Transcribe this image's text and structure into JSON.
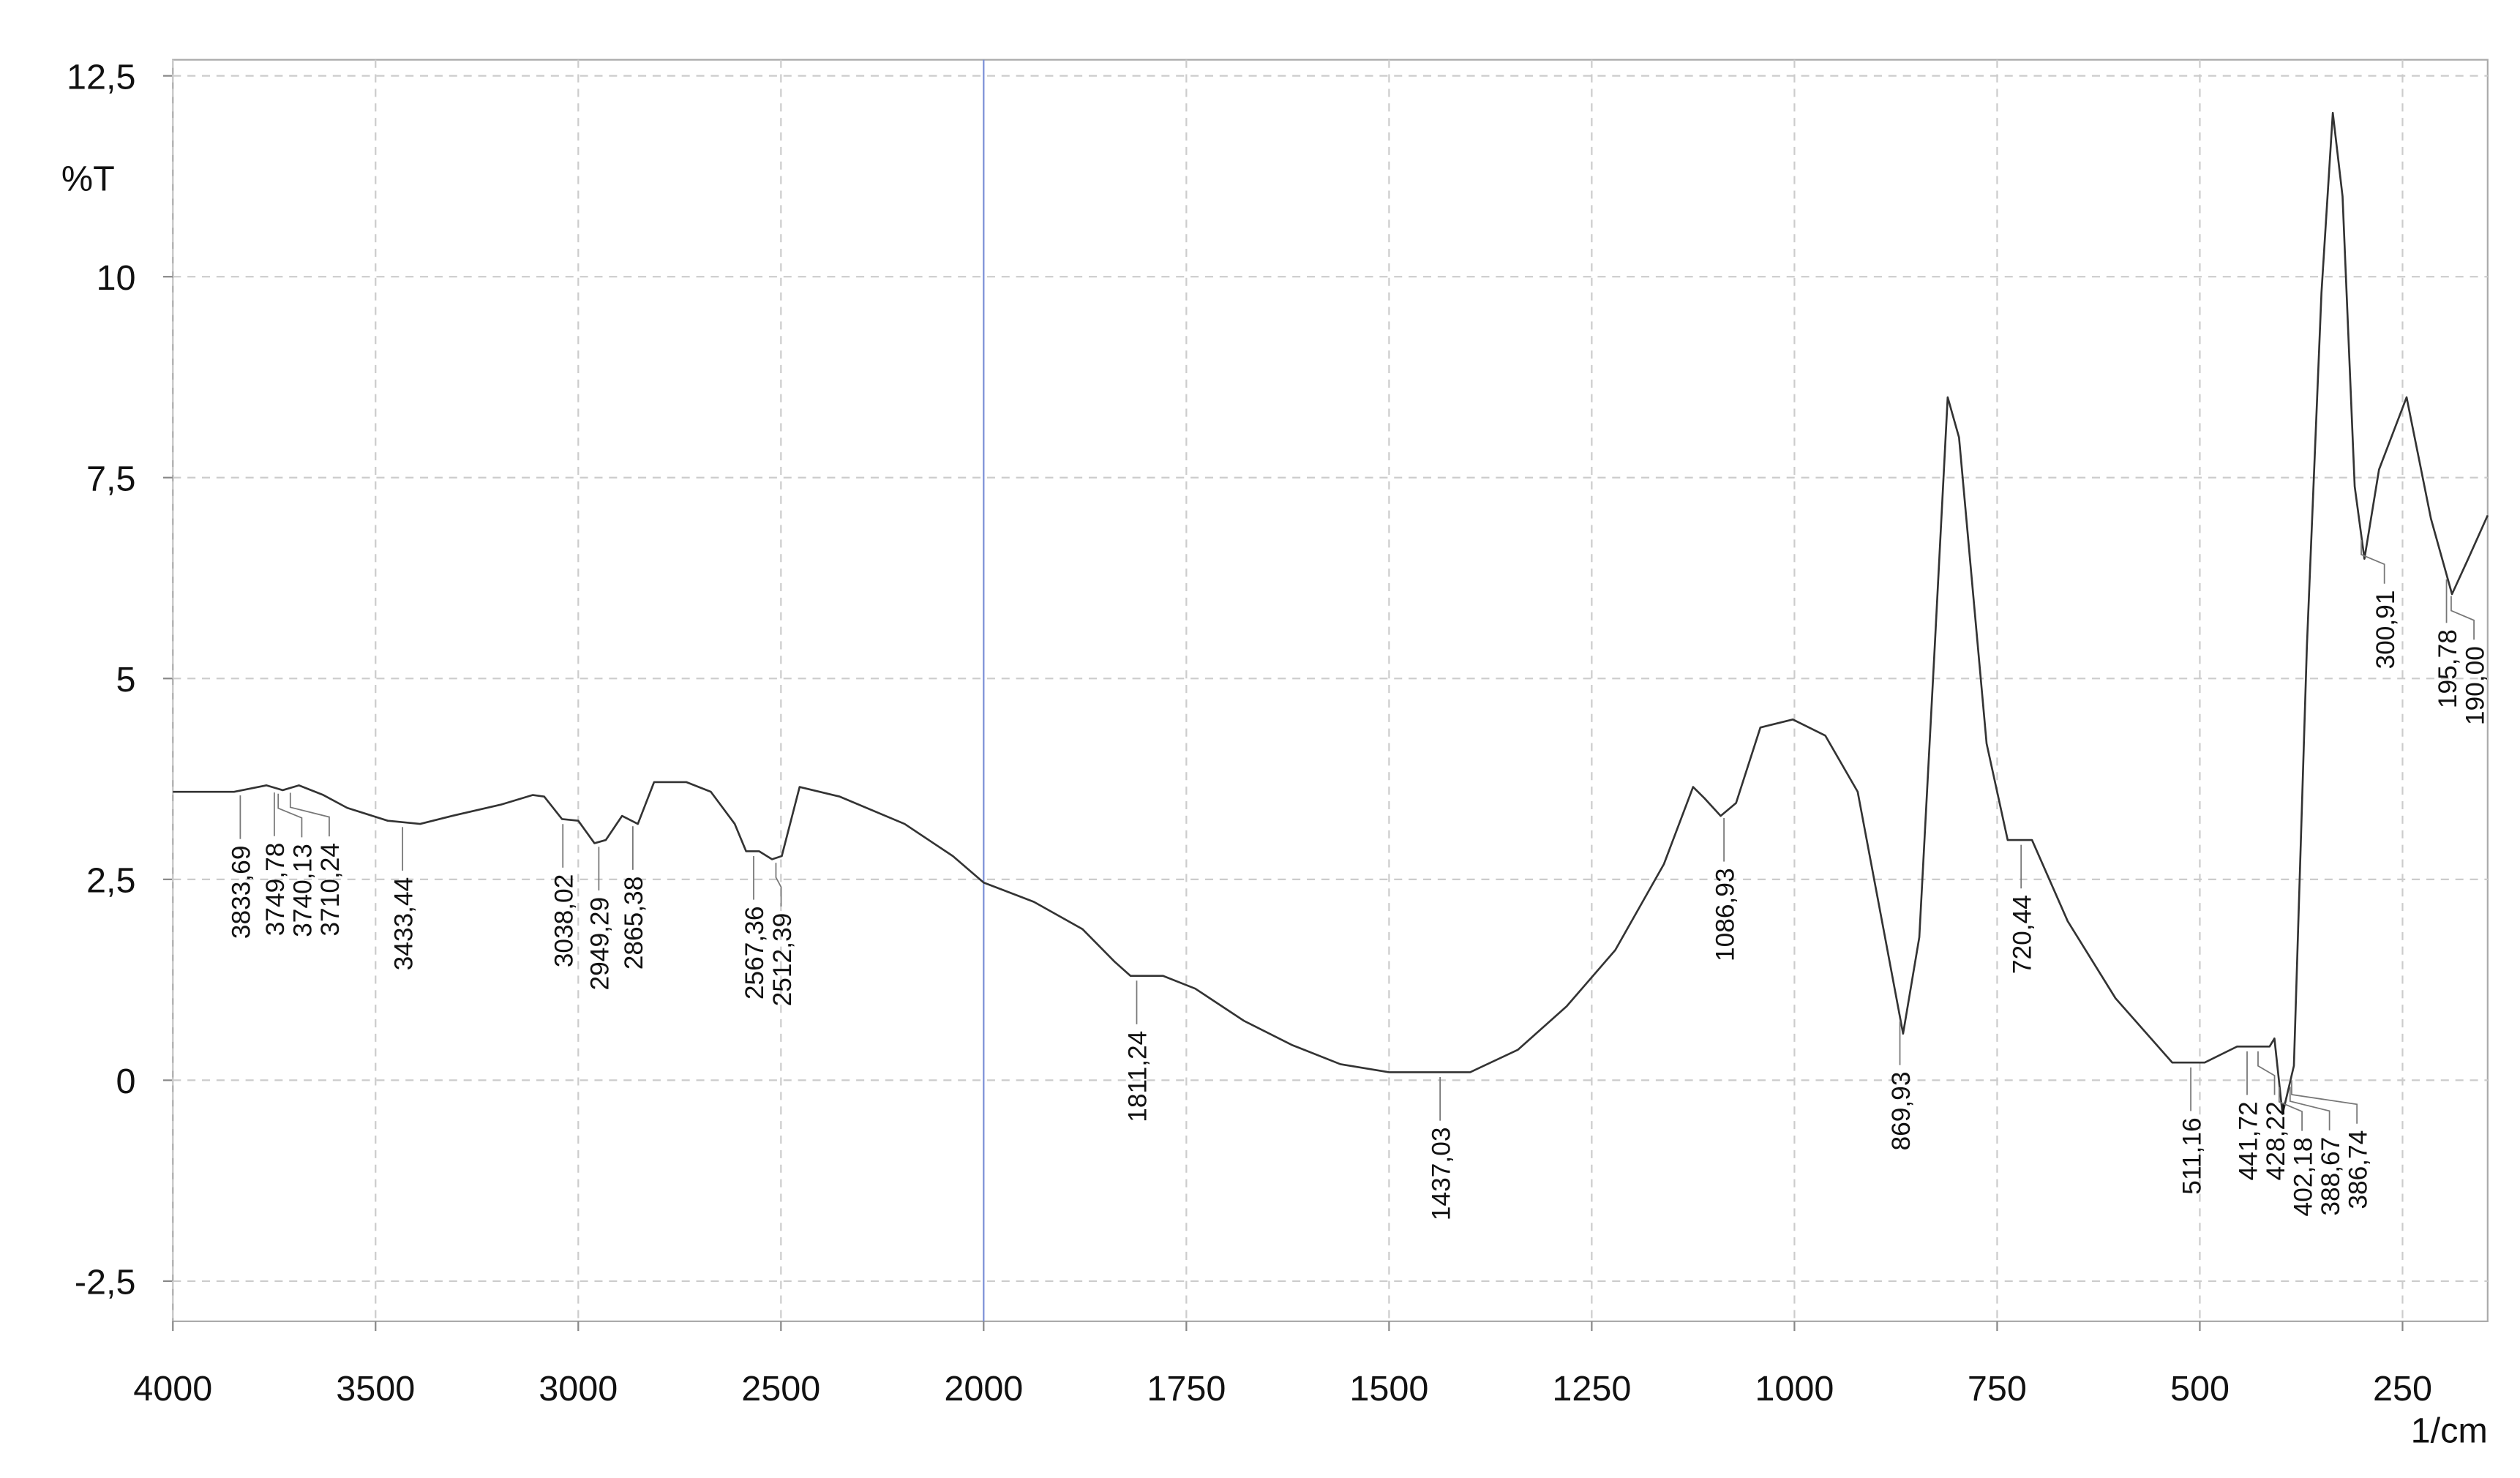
{
  "chart_data": {
    "type": "line",
    "y_label": "%T",
    "x_label": "1/cm",
    "color": "#333333",
    "grid": true,
    "xlim": [
      4000,
      145
    ],
    "xbreak": 2000,
    "xbreak_zoom": 2,
    "ylim": [
      -3,
      12.7
    ],
    "xticks": [
      4000,
      3500,
      3000,
      2500,
      2000,
      1750,
      1500,
      1250,
      1000,
      750,
      500,
      250
    ],
    "yticks": [
      {
        "value": -2.5,
        "label": "-2,5"
      },
      0,
      {
        "value": 2.5,
        "label": "2,5"
      },
      5,
      {
        "value": 7.5,
        "label": "7,5"
      },
      10,
      {
        "value": 12.5,
        "label": "12,5"
      }
    ],
    "x": [
      4000,
      3849,
      3769,
      3729,
      3689,
      3629,
      3570,
      3470,
      3390,
      3311,
      3191,
      3112,
      3084,
      3040,
      3000,
      2960,
      2932,
      2892,
      2853,
      2813,
      2733,
      2673,
      2614,
      2586,
      2554,
      2522,
      2498,
      2454,
      2355,
      2195,
      2076,
      2000,
      1938,
      1878,
      1839,
      1819,
      1779,
      1739,
      1679,
      1620,
      1560,
      1500,
      1400,
      1341,
      1281,
      1221,
      1161,
      1125,
      1111,
      1091,
      1072,
      1042,
      1002,
      962,
      922,
      892,
      866,
      846,
      827,
      811,
      797,
      763,
      737,
      707,
      663,
      604,
      534,
      494,
      454,
      414,
      408,
      398,
      384,
      368,
      350,
      336,
      324,
      309,
      297,
      279,
      245,
      215,
      189,
      169,
      145
    ],
    "values": [
      3.59,
      3.59,
      3.67,
      3.61,
      3.67,
      3.55,
      3.39,
      3.23,
      3.19,
      3.29,
      3.43,
      3.55,
      3.53,
      3.25,
      3.23,
      2.95,
      2.99,
      3.29,
      3.19,
      3.71,
      3.71,
      3.59,
      3.19,
      2.85,
      2.85,
      2.75,
      2.79,
      3.65,
      3.53,
      3.19,
      2.79,
      2.46,
      2.22,
      1.88,
      1.48,
      1.3,
      1.3,
      1.14,
      0.74,
      0.44,
      0.2,
      0.1,
      0.1,
      0.38,
      0.92,
      1.62,
      2.69,
      3.65,
      3.51,
      3.29,
      3.45,
      4.39,
      4.49,
      4.29,
      3.59,
      1.98,
      0.58,
      1.78,
      5.39,
      8.5,
      8.0,
      4.19,
      2.99,
      2.99,
      1.98,
      1.02,
      0.22,
      0.22,
      0.42,
      0.42,
      0.52,
      -0.42,
      0.18,
      5.39,
      9.8,
      12.04,
      11.0,
      7.39,
      6.49,
      7.6,
      8.5,
      6.99,
      6.05,
      6.49,
      7.03
    ],
    "peaks": {
      "x": [
        3833.69,
        3749.78,
        3740.13,
        3710.24,
        3433.44,
        3038.02,
        2949.29,
        2865.38,
        2567.36,
        2512.39,
        1811.24,
        1437.03,
        1086.93,
        869.93,
        720.44,
        511.16,
        441.72,
        428.22,
        402.18,
        388.67,
        386.74,
        300.91,
        195.78,
        190.0
      ],
      "value_labels": [
        "3833,69",
        "3749,78",
        "3740,13",
        "3710,24",
        "3433,44",
        "3038,02",
        "2949,29",
        "2865,38",
        "2567,36",
        "2512,39",
        "1811,24",
        "1437,03",
        "1086,93",
        "869,93",
        "720,44",
        "511,16",
        "441,72",
        "428,22",
        "402,18",
        "388,67",
        "386,74",
        "300,91",
        "195,78",
        "190,00"
      ]
    }
  }
}
